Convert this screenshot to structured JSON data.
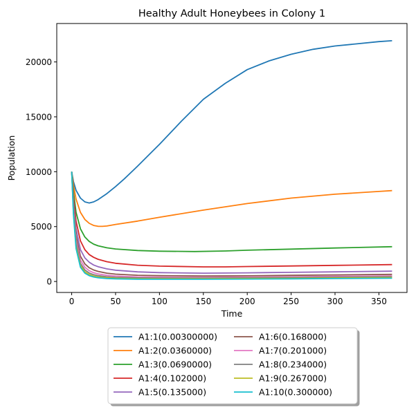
{
  "chart_data": {
    "type": "line",
    "title": "Healthy Adult Honeybees in Colony 1",
    "xlabel": "Time",
    "ylabel": "Population",
    "xlim": [
      -17,
      382
    ],
    "ylim": [
      -1000,
      23500
    ],
    "xticks": [
      0,
      50,
      100,
      150,
      200,
      250,
      300,
      350
    ],
    "yticks": [
      0,
      5000,
      10000,
      15000,
      20000
    ],
    "grid": false,
    "legend": {
      "placement": "below",
      "columns": 2
    },
    "series": [
      {
        "name": "A1:1(0.00300000)",
        "color": "#1f77b4",
        "x": [
          0,
          2,
          5,
          10,
          15,
          20,
          25,
          30,
          40,
          50,
          60,
          75,
          90,
          100,
          125,
          150,
          175,
          200,
          225,
          250,
          275,
          300,
          325,
          350,
          365
        ],
        "y": [
          10000,
          9100,
          8300,
          7600,
          7250,
          7150,
          7250,
          7450,
          8000,
          8650,
          9350,
          10500,
          11700,
          12500,
          14600,
          16600,
          18050,
          19300,
          20100,
          20700,
          21150,
          21450,
          21650,
          21850,
          21930
        ]
      },
      {
        "name": "A1:2(0.0360000)",
        "color": "#ff7f0e",
        "x": [
          0,
          2,
          5,
          10,
          15,
          20,
          25,
          30,
          35,
          40,
          50,
          75,
          100,
          150,
          200,
          250,
          300,
          350,
          365
        ],
        "y": [
          10000,
          8800,
          7500,
          6300,
          5650,
          5300,
          5100,
          5030,
          5020,
          5050,
          5200,
          5500,
          5850,
          6500,
          7100,
          7600,
          7950,
          8200,
          8280
        ]
      },
      {
        "name": "A1:3(0.0690000)",
        "color": "#2ca02c",
        "x": [
          0,
          2,
          5,
          10,
          15,
          20,
          25,
          30,
          40,
          50,
          75,
          100,
          140,
          175,
          200,
          250,
          300,
          365
        ],
        "y": [
          10000,
          8200,
          6300,
          4800,
          4050,
          3650,
          3400,
          3250,
          3070,
          2960,
          2820,
          2760,
          2730,
          2780,
          2850,
          2950,
          3050,
          3170
        ]
      },
      {
        "name": "A1:4(0.102000)",
        "color": "#d62728",
        "x": [
          0,
          2,
          5,
          10,
          15,
          20,
          25,
          30,
          40,
          50,
          75,
          100,
          150,
          175,
          200,
          250,
          300,
          365
        ],
        "y": [
          10000,
          7700,
          5500,
          3700,
          2900,
          2450,
          2200,
          2020,
          1800,
          1660,
          1480,
          1400,
          1330,
          1330,
          1360,
          1410,
          1470,
          1540
        ]
      },
      {
        "name": "A1:5(0.135000)",
        "color": "#9467bd",
        "x": [
          0,
          2,
          5,
          10,
          15,
          20,
          25,
          30,
          40,
          50,
          75,
          100,
          150,
          200,
          250,
          300,
          365
        ],
        "y": [
          10000,
          7300,
          4800,
          2900,
          2150,
          1750,
          1500,
          1350,
          1150,
          1030,
          880,
          810,
          760,
          790,
          830,
          880,
          940
        ]
      },
      {
        "name": "A1:6(0.168000)",
        "color": "#8c564b",
        "x": [
          0,
          2,
          5,
          10,
          15,
          20,
          25,
          30,
          40,
          50,
          75,
          100,
          150,
          200,
          250,
          300,
          365
        ],
        "y": [
          10000,
          7000,
          4200,
          2300,
          1600,
          1250,
          1050,
          920,
          760,
          670,
          570,
          530,
          500,
          520,
          560,
          600,
          650
        ]
      },
      {
        "name": "A1:7(0.201000)",
        "color": "#e377c2",
        "x": [
          0,
          2,
          5,
          10,
          15,
          20,
          25,
          30,
          40,
          50,
          75,
          100,
          150,
          200,
          250,
          300,
          365
        ],
        "y": [
          10000,
          6700,
          3800,
          1950,
          1300,
          980,
          800,
          690,
          560,
          490,
          420,
          390,
          380,
          400,
          430,
          470,
          510
        ]
      },
      {
        "name": "A1:8(0.234000)",
        "color": "#7f7f7f",
        "x": [
          0,
          2,
          5,
          10,
          15,
          20,
          25,
          30,
          40,
          50,
          75,
          100,
          150,
          200,
          250,
          300,
          365
        ],
        "y": [
          10000,
          6500,
          3500,
          1650,
          1050,
          770,
          620,
          530,
          430,
          380,
          330,
          310,
          310,
          330,
          360,
          390,
          430
        ]
      },
      {
        "name": "A1:9(0.267000)",
        "color": "#bcbd22",
        "x": [
          0,
          2,
          5,
          10,
          15,
          20,
          25,
          30,
          40,
          50,
          75,
          100,
          150,
          200,
          250,
          300,
          365
        ],
        "y": [
          10000,
          6300,
          3200,
          1450,
          880,
          630,
          500,
          420,
          340,
          300,
          260,
          250,
          250,
          270,
          290,
          320,
          360
        ]
      },
      {
        "name": "A1:10(0.300000)",
        "color": "#17becf",
        "x": [
          0,
          2,
          5,
          10,
          15,
          20,
          25,
          30,
          40,
          50,
          75,
          100,
          150,
          200,
          250,
          300,
          365
        ],
        "y": [
          10000,
          6100,
          3000,
          1300,
          760,
          530,
          410,
          340,
          270,
          240,
          210,
          200,
          205,
          220,
          240,
          265,
          300
        ]
      }
    ]
  }
}
